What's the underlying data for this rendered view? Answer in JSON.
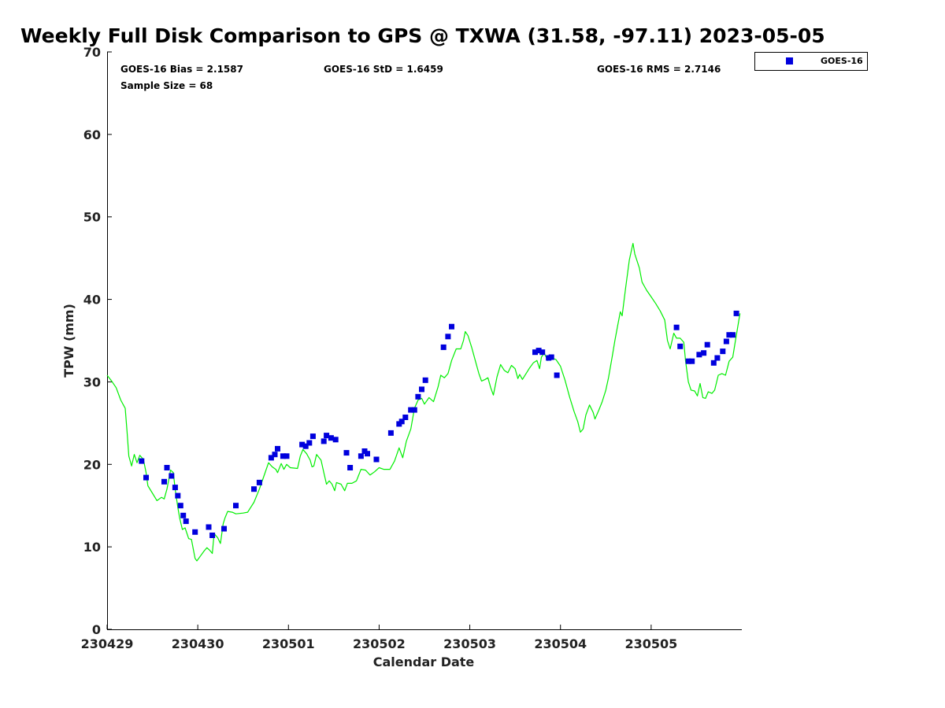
{
  "chart_data": {
    "type": "line",
    "title": "Weekly Full Disk Comparison to GPS @ TXWA (31.58, -97.11) 2023-05-05",
    "xlabel": "Calendar Date",
    "ylabel": "TPW (mm)",
    "ylim": [
      0,
      70
    ],
    "xlim": [
      0,
      7
    ],
    "yticks": [
      "0",
      "10",
      "20",
      "30",
      "40",
      "50",
      "60",
      "70"
    ],
    "xtick_labels": [
      "230429",
      "230430",
      "230501",
      "230502",
      "230503",
      "230504",
      "230505"
    ],
    "grid": false,
    "legend_position": "top-right",
    "stats": {
      "bias": "GOES-16 Bias = 2.1587",
      "std": "GOES-16 StD = 1.6459",
      "rms": "GOES-16 RMS = 2.7146",
      "sample_size": "Sample Size = 68"
    },
    "series": [
      {
        "name": "GOES-16",
        "type": "scatter",
        "color": "#0000dd",
        "marker": "square",
        "points": [
          [
            0.38,
            20.4
          ],
          [
            0.43,
            18.4
          ],
          [
            0.63,
            17.9
          ],
          [
            0.66,
            19.6
          ],
          [
            0.71,
            18.6
          ],
          [
            0.75,
            17.2
          ],
          [
            0.78,
            16.2
          ],
          [
            0.81,
            15.0
          ],
          [
            0.84,
            13.8
          ],
          [
            0.87,
            13.1
          ],
          [
            0.97,
            11.8
          ],
          [
            1.12,
            12.4
          ],
          [
            1.16,
            11.4
          ],
          [
            1.29,
            12.2
          ],
          [
            1.42,
            15.0
          ],
          [
            1.62,
            17.0
          ],
          [
            1.68,
            17.8
          ],
          [
            1.81,
            20.8
          ],
          [
            1.85,
            21.2
          ],
          [
            1.88,
            21.9
          ],
          [
            1.94,
            21.0
          ],
          [
            1.98,
            21.0
          ],
          [
            2.15,
            22.4
          ],
          [
            2.19,
            22.2
          ],
          [
            2.23,
            22.6
          ],
          [
            2.27,
            23.4
          ],
          [
            2.39,
            22.8
          ],
          [
            2.42,
            23.5
          ],
          [
            2.47,
            23.2
          ],
          [
            2.52,
            23.0
          ],
          [
            2.64,
            21.4
          ],
          [
            2.68,
            19.6
          ],
          [
            2.8,
            21.0
          ],
          [
            2.84,
            21.6
          ],
          [
            2.87,
            21.3
          ],
          [
            2.97,
            20.6
          ],
          [
            3.13,
            23.8
          ],
          [
            3.22,
            24.9
          ],
          [
            3.25,
            25.2
          ],
          [
            3.29,
            25.7
          ],
          [
            3.35,
            26.6
          ],
          [
            3.39,
            26.6
          ],
          [
            3.43,
            28.2
          ],
          [
            3.47,
            29.1
          ],
          [
            3.51,
            30.2
          ],
          [
            3.71,
            34.2
          ],
          [
            3.76,
            35.5
          ],
          [
            3.8,
            36.7
          ],
          [
            4.72,
            33.6
          ],
          [
            4.76,
            33.8
          ],
          [
            4.8,
            33.6
          ],
          [
            4.87,
            32.9
          ],
          [
            4.9,
            33.0
          ],
          [
            4.96,
            30.8
          ],
          [
            6.28,
            36.6
          ],
          [
            6.32,
            34.3
          ],
          [
            6.41,
            32.5
          ],
          [
            6.45,
            32.5
          ],
          [
            6.53,
            33.3
          ],
          [
            6.58,
            33.5
          ],
          [
            6.62,
            34.5
          ],
          [
            6.69,
            32.3
          ],
          [
            6.73,
            32.9
          ],
          [
            6.79,
            33.7
          ],
          [
            6.83,
            34.9
          ],
          [
            6.86,
            35.7
          ],
          [
            6.9,
            35.7
          ],
          [
            6.94,
            38.3
          ]
        ]
      },
      {
        "name": "GPS",
        "type": "line",
        "color": "#00ee00",
        "points": [
          [
            0.0,
            30.8
          ],
          [
            0.05,
            30.1
          ],
          [
            0.1,
            29.3
          ],
          [
            0.15,
            27.8
          ],
          [
            0.18,
            27.2
          ],
          [
            0.2,
            26.8
          ],
          [
            0.22,
            24.0
          ],
          [
            0.24,
            21.0
          ],
          [
            0.27,
            19.8
          ],
          [
            0.3,
            21.2
          ],
          [
            0.33,
            20.2
          ],
          [
            0.36,
            21.1
          ],
          [
            0.4,
            20.6
          ],
          [
            0.43,
            19.0
          ],
          [
            0.45,
            17.4
          ],
          [
            0.5,
            16.5
          ],
          [
            0.55,
            15.6
          ],
          [
            0.6,
            16.0
          ],
          [
            0.63,
            15.8
          ],
          [
            0.66,
            17.0
          ],
          [
            0.7,
            19.3
          ],
          [
            0.73,
            19.0
          ],
          [
            0.75,
            17.0
          ],
          [
            0.78,
            14.8
          ],
          [
            0.8,
            13.5
          ],
          [
            0.83,
            12.1
          ],
          [
            0.86,
            12.3
          ],
          [
            0.9,
            11.0
          ],
          [
            0.93,
            10.9
          ],
          [
            0.97,
            8.6
          ],
          [
            0.99,
            8.3
          ],
          [
            1.03,
            8.9
          ],
          [
            1.07,
            9.5
          ],
          [
            1.1,
            9.9
          ],
          [
            1.13,
            9.6
          ],
          [
            1.16,
            9.2
          ],
          [
            1.18,
            11.6
          ],
          [
            1.22,
            11.1
          ],
          [
            1.25,
            10.4
          ],
          [
            1.28,
            12.8
          ],
          [
            1.3,
            13.5
          ],
          [
            1.33,
            14.3
          ],
          [
            1.38,
            14.2
          ],
          [
            1.42,
            14.0
          ],
          [
            1.5,
            14.1
          ],
          [
            1.55,
            14.2
          ],
          [
            1.62,
            15.4
          ],
          [
            1.68,
            17.0
          ],
          [
            1.73,
            18.6
          ],
          [
            1.78,
            20.2
          ],
          [
            1.82,
            19.7
          ],
          [
            1.86,
            19.4
          ],
          [
            1.88,
            19.0
          ],
          [
            1.92,
            20.1
          ],
          [
            1.95,
            19.4
          ],
          [
            1.98,
            20.0
          ],
          [
            2.02,
            19.6
          ],
          [
            2.1,
            19.5
          ],
          [
            2.13,
            21.0
          ],
          [
            2.16,
            21.8
          ],
          [
            2.2,
            21.3
          ],
          [
            2.24,
            20.5
          ],
          [
            2.26,
            19.7
          ],
          [
            2.28,
            19.8
          ],
          [
            2.31,
            21.2
          ],
          [
            2.36,
            20.5
          ],
          [
            2.39,
            19.0
          ],
          [
            2.42,
            17.6
          ],
          [
            2.45,
            18.0
          ],
          [
            2.48,
            17.6
          ],
          [
            2.51,
            16.8
          ],
          [
            2.53,
            17.8
          ],
          [
            2.58,
            17.6
          ],
          [
            2.62,
            16.8
          ],
          [
            2.65,
            17.7
          ],
          [
            2.7,
            17.7
          ],
          [
            2.75,
            18.0
          ],
          [
            2.8,
            19.4
          ],
          [
            2.85,
            19.3
          ],
          [
            2.9,
            18.7
          ],
          [
            2.95,
            19.1
          ],
          [
            3.0,
            19.6
          ],
          [
            3.05,
            19.4
          ],
          [
            3.12,
            19.4
          ],
          [
            3.17,
            20.4
          ],
          [
            3.22,
            22.0
          ],
          [
            3.26,
            20.8
          ],
          [
            3.3,
            22.8
          ],
          [
            3.35,
            24.3
          ],
          [
            3.39,
            26.8
          ],
          [
            3.43,
            27.8
          ],
          [
            3.47,
            28.0
          ],
          [
            3.5,
            27.3
          ],
          [
            3.55,
            28.1
          ],
          [
            3.6,
            27.6
          ],
          [
            3.65,
            29.4
          ],
          [
            3.68,
            30.8
          ],
          [
            3.72,
            30.5
          ],
          [
            3.76,
            31.0
          ],
          [
            3.8,
            32.6
          ],
          [
            3.85,
            34.0
          ],
          [
            3.9,
            34.0
          ],
          [
            3.93,
            35.0
          ],
          [
            3.95,
            36.1
          ],
          [
            3.98,
            35.6
          ],
          [
            4.02,
            34.2
          ],
          [
            4.06,
            32.6
          ],
          [
            4.1,
            31.0
          ],
          [
            4.13,
            30.1
          ],
          [
            4.17,
            30.3
          ],
          [
            4.2,
            30.5
          ],
          [
            4.23,
            29.3
          ],
          [
            4.26,
            28.4
          ],
          [
            4.3,
            30.6
          ],
          [
            4.34,
            32.1
          ],
          [
            4.38,
            31.4
          ],
          [
            4.42,
            31.1
          ],
          [
            4.46,
            32.0
          ],
          [
            4.5,
            31.6
          ],
          [
            4.53,
            30.4
          ],
          [
            4.55,
            30.9
          ],
          [
            4.58,
            30.3
          ],
          [
            4.62,
            31.0
          ],
          [
            4.66,
            31.7
          ],
          [
            4.7,
            32.3
          ],
          [
            4.74,
            32.6
          ],
          [
            4.77,
            31.6
          ],
          [
            4.79,
            33.0
          ],
          [
            4.82,
            33.5
          ],
          [
            4.86,
            32.6
          ],
          [
            4.9,
            32.9
          ],
          [
            4.95,
            32.7
          ],
          [
            5.0,
            31.9
          ],
          [
            5.05,
            30.2
          ],
          [
            5.1,
            28.2
          ],
          [
            5.15,
            26.4
          ],
          [
            5.19,
            25.2
          ],
          [
            5.22,
            23.9
          ],
          [
            5.25,
            24.3
          ],
          [
            5.28,
            26.0
          ],
          [
            5.32,
            27.2
          ],
          [
            5.36,
            26.3
          ],
          [
            5.38,
            25.5
          ],
          [
            5.42,
            26.5
          ],
          [
            5.46,
            27.6
          ],
          [
            5.5,
            29.0
          ],
          [
            5.53,
            30.5
          ],
          [
            5.57,
            33.0
          ],
          [
            5.6,
            35.0
          ],
          [
            5.63,
            36.8
          ],
          [
            5.66,
            38.5
          ],
          [
            5.68,
            38.0
          ],
          [
            5.72,
            41.5
          ],
          [
            5.76,
            44.8
          ],
          [
            5.8,
            46.8
          ],
          [
            5.82,
            45.5
          ],
          [
            5.87,
            43.8
          ],
          [
            5.9,
            42.1
          ],
          [
            5.95,
            41.1
          ],
          [
            6.0,
            40.3
          ],
          [
            6.05,
            39.5
          ],
          [
            6.1,
            38.6
          ],
          [
            6.15,
            37.5
          ],
          [
            6.18,
            35.0
          ],
          [
            6.21,
            34.0
          ],
          [
            6.25,
            35.9
          ],
          [
            6.28,
            35.3
          ],
          [
            6.32,
            35.3
          ],
          [
            6.36,
            34.8
          ],
          [
            6.38,
            32.5
          ],
          [
            6.41,
            30.0
          ],
          [
            6.44,
            29.0
          ],
          [
            6.48,
            28.9
          ],
          [
            6.51,
            28.3
          ],
          [
            6.54,
            29.8
          ],
          [
            6.57,
            28.1
          ],
          [
            6.6,
            28.0
          ],
          [
            6.63,
            28.8
          ],
          [
            6.67,
            28.6
          ],
          [
            6.7,
            29.0
          ],
          [
            6.74,
            30.8
          ],
          [
            6.78,
            31.0
          ],
          [
            6.82,
            30.8
          ],
          [
            6.86,
            32.5
          ],
          [
            6.9,
            33.0
          ],
          [
            6.93,
            35.0
          ],
          [
            6.96,
            37.0
          ],
          [
            6.98,
            38.3
          ]
        ]
      }
    ]
  }
}
